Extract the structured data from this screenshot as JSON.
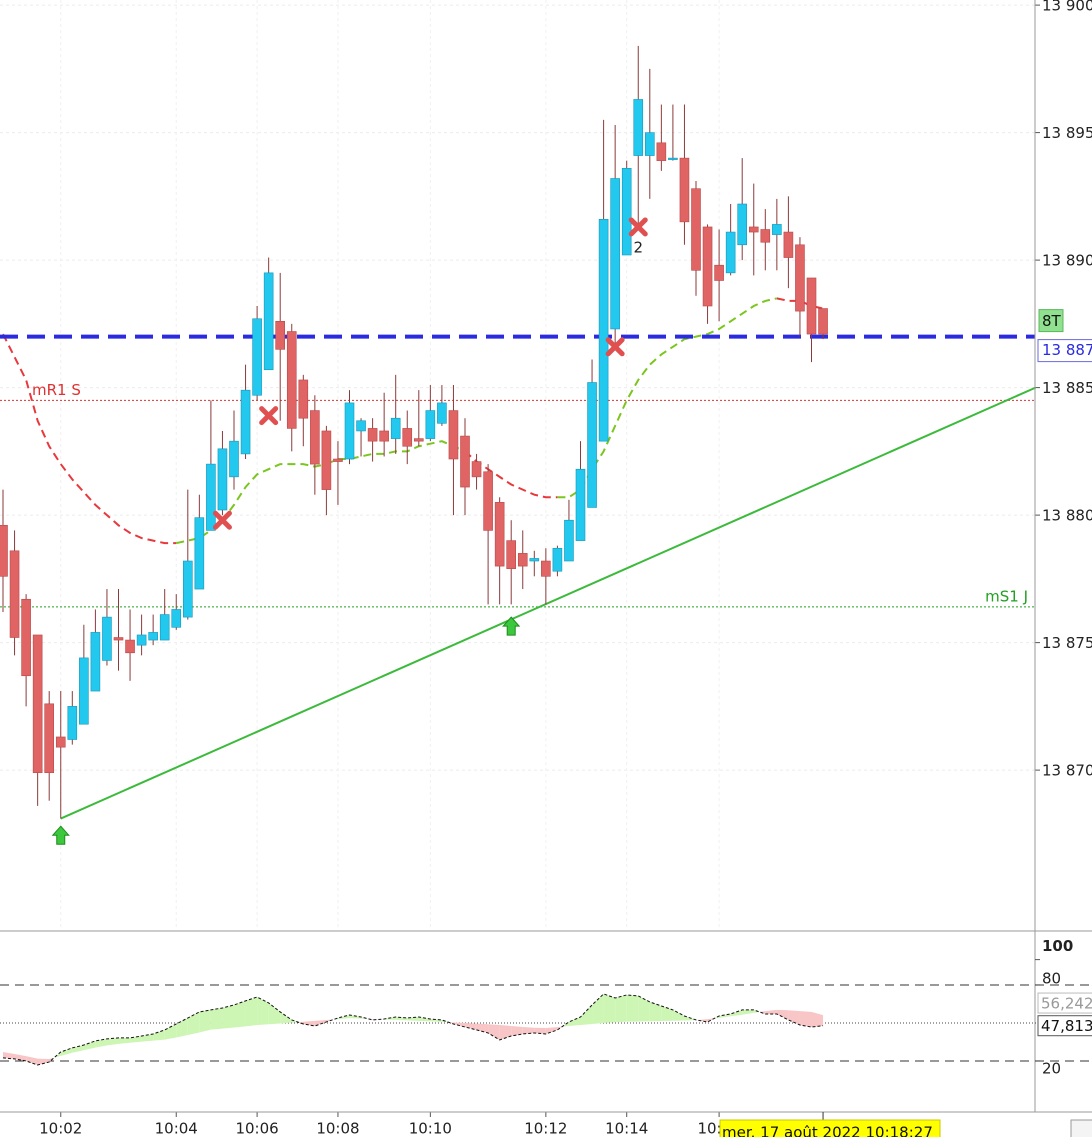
{
  "chart_data": {
    "type": "candlestick",
    "categories": [
      null,
      null,
      null,
      null,
      null,
      "10:02",
      null,
      null,
      null,
      null,
      null,
      null,
      null,
      null,
      null,
      "10:04",
      null,
      null,
      null,
      null,
      null,
      null,
      "10:06",
      null,
      null,
      null,
      null,
      null,
      null,
      "10:08",
      null,
      null,
      null,
      null,
      null,
      null,
      null,
      "10:10",
      null,
      null,
      null,
      null,
      null,
      null,
      null,
      null,
      null,
      "10:12",
      null,
      null,
      null,
      null,
      null,
      null,
      "10:14",
      null,
      null,
      null,
      null,
      null,
      null,
      null,
      "10:16",
      null,
      null,
      null,
      null,
      null,
      null,
      null,
      null,
      null
    ],
    "open": [
      13879.6,
      13878.6,
      13876.7,
      13875.3,
      13872.6,
      13871.3,
      13871.2,
      13871.8,
      13873.1,
      13874.3,
      13875.2,
      13875.1,
      13874.9,
      13875.1,
      13875.1,
      13875.6,
      13876.0,
      13877.1,
      13879.4,
      13880.2,
      13881.5,
      13882.4,
      13884.7,
      13885.7,
      13887.6,
      13887.2,
      13885.3,
      13884.1,
      13883.3,
      13882.2,
      13882.2,
      13883.3,
      13883.4,
      13883.3,
      13883.0,
      13883.4,
      13883.0,
      13883.0,
      13883.6,
      13884.1,
      13883.1,
      13882.1,
      13881.7,
      13880.5,
      13879.0,
      13878.5,
      13878.2,
      13878.2,
      13877.8,
      13878.2,
      13879.0,
      13880.3,
      13882.9,
      13887.3,
      13890.2,
      13894.1,
      13894.1,
      13894.6,
      13894.0,
      13894.0,
      13892.8,
      13891.3,
      13889.8,
      13889.5,
      13890.6,
      13891.3,
      13891.2,
      13891.0,
      13891.1,
      13890.6,
      13889.3,
      13888.1
    ],
    "high": [
      13881.0,
      13879.4,
      13876.9,
      13875.3,
      13873.1,
      13873.1,
      13873.1,
      13875.7,
      13876.3,
      13877.1,
      13877.1,
      13876.3,
      13876.1,
      13876.1,
      13877.1,
      13876.9,
      13881.0,
      13880.8,
      13884.5,
      13883.3,
      13884.1,
      13885.9,
      13888.2,
      13890.1,
      13889.5,
      13887.5,
      13885.5,
      13884.7,
      13883.5,
      13882.9,
      13884.9,
      13883.8,
      13883.8,
      13884.8,
      13885.5,
      13884.1,
      13884.9,
      13885.1,
      13885.1,
      13885.1,
      13883.8,
      13882.4,
      13882.0,
      13880.7,
      13879.8,
      13879.4,
      13878.6,
      13878.7,
      13878.8,
      13880.6,
      13882.9,
      13886.1,
      13895.5,
      13895.3,
      13893.9,
      13898.4,
      13897.5,
      13896.1,
      13896.1,
      13896.1,
      13893.1,
      13891.4,
      13891.2,
      13892.2,
      13894.0,
      13893.0,
      13892.0,
      13892.4,
      13892.5,
      13890.9,
      13889.3,
      13888.1
    ],
    "low": [
      13876.2,
      13874.5,
      13872.5,
      13868.6,
      13868.8,
      13868.1,
      13871.0,
      13871.8,
      13873.1,
      13874.1,
      13873.9,
      13873.5,
      13874.5,
      13874.9,
      13875.1,
      13875.5,
      13875.9,
      13877.1,
      13879.4,
      13880.0,
      13881.0,
      13882.2,
      13884.5,
      13885.7,
      13883.7,
      13882.5,
      13882.7,
      13880.8,
      13880.0,
      13880.4,
      13882.0,
      13882.3,
      13882.1,
      13882.3,
      13882.4,
      13882.0,
      13882.7,
      13882.9,
      13883.5,
      13880.0,
      13880.0,
      13881.0,
      13876.5,
      13876.5,
      13876.5,
      13877.1,
      13877.6,
      13876.5,
      13877.6,
      13878.2,
      13879.0,
      13880.3,
      13882.9,
      13886.7,
      13890.2,
      13891.2,
      13892.4,
      13893.5,
      13893.9,
      13890.6,
      13888.6,
      13887.5,
      13887.6,
      13889.4,
      13890.0,
      13889.4,
      13889.6,
      13889.6,
      13888.9,
      13887.0,
      13886.0,
      13886.9
    ],
    "close": [
      13877.6,
      13875.2,
      13873.7,
      13869.9,
      13869.9,
      13870.9,
      13872.5,
      13874.4,
      13875.4,
      13876.0,
      13875.1,
      13874.6,
      13875.3,
      13875.4,
      13876.1,
      13876.3,
      13878.2,
      13879.9,
      13882.0,
      13882.6,
      13882.9,
      13884.9,
      13887.7,
      13889.5,
      13886.5,
      13883.4,
      13883.8,
      13882.0,
      13881.0,
      13882.1,
      13884.4,
      13883.7,
      13882.9,
      13882.9,
      13883.8,
      13882.7,
      13882.9,
      13884.1,
      13884.4,
      13882.2,
      13881.1,
      13881.5,
      13879.4,
      13878.0,
      13877.9,
      13878.0,
      13878.3,
      13877.6,
      13878.7,
      13879.8,
      13881.8,
      13885.2,
      13891.6,
      13893.2,
      13893.6,
      13896.3,
      13895.0,
      13893.9,
      13894.0,
      13891.5,
      13889.6,
      13888.2,
      13889.2,
      13891.1,
      13892.2,
      13891.1,
      13890.7,
      13891.4,
      13890.1,
      13888.0,
      13887.1,
      13887.1
    ],
    "up_color": "#22c8ee",
    "down_color": "#e06464",
    "ylim": [
      13863.73,
      13900.2
    ],
    "yticks": [
      {
        "value": 13900,
        "label": "13 900"
      },
      {
        "value": 13895,
        "label": "13 895"
      },
      {
        "value": 13890,
        "label": "13 890"
      },
      {
        "value": 13885,
        "label": "13 885"
      },
      {
        "value": 13880,
        "label": "13 880"
      },
      {
        "value": 13875,
        "label": "13 875"
      },
      {
        "value": 13870,
        "label": "13 870"
      }
    ],
    "grid": true,
    "ma_series": [
      {
        "color": "#e8383c",
        "values": [
          13887.1,
          13886.2,
          13885.3,
          13883.7,
          13882.7,
          13882.0,
          13881.4,
          13880.9,
          13880.4,
          13880.0,
          13879.6,
          13879.3,
          13879.1,
          13879.0,
          13878.9,
          13878.9,
          null,
          null,
          null,
          null,
          null,
          null,
          null,
          null,
          null,
          null,
          null,
          null,
          null,
          null,
          null,
          null,
          null,
          null,
          null,
          null,
          null,
          null,
          null,
          null,
          13882.5,
          13882.1,
          13881.8,
          13881.5,
          13881.2,
          13881.0,
          13880.8,
          13880.7,
          13880.7,
          null,
          null,
          null,
          null,
          null,
          null,
          null,
          null,
          null,
          null,
          null,
          null,
          null,
          null,
          null,
          null,
          null,
          null,
          13888.5,
          13888.4,
          13888.4,
          13888.2,
          13888.1
        ]
      },
      {
        "color": "#7ac61e",
        "values": [
          null,
          null,
          null,
          null,
          null,
          null,
          null,
          null,
          null,
          null,
          null,
          null,
          null,
          null,
          null,
          13878.9,
          13879.0,
          13879.1,
          13879.4,
          13879.8,
          13880.4,
          13881.1,
          13881.6,
          13881.8,
          13882.0,
          13882.0,
          13882.0,
          13881.9,
          13882.0,
          13882.2,
          13882.2,
          13882.3,
          13882.4,
          13882.4,
          13882.5,
          13882.5,
          13882.7,
          13882.8,
          13882.9,
          13882.7,
          13882.5,
          null,
          null,
          null,
          null,
          null,
          null,
          null,
          13880.7,
          13880.7,
          13881.0,
          13881.8,
          13882.5,
          13883.5,
          13884.5,
          13885.3,
          13885.9,
          13886.3,
          13886.6,
          13886.9,
          13887.0,
          13887.1,
          13887.3,
          13887.6,
          13887.9,
          13888.2,
          13888.4,
          13888.5,
          null,
          null,
          null,
          null
        ]
      }
    ],
    "levels": [
      {
        "name": "mR1 S",
        "value": 13884.5,
        "color": "#e03030"
      },
      {
        "name": "mS1 J",
        "value": 13876.4,
        "color": "#22a022"
      }
    ],
    "price_line": {
      "value": 13887,
      "label": "13 887",
      "color": "#2a2ae0",
      "tag": "8T"
    },
    "trendline": {
      "x": [
        5,
        89.4
      ],
      "values": [
        13868.1,
        13885.0
      ],
      "color": "#3cba3c"
    },
    "signals": [
      {
        "kind": "buy",
        "index": 5,
        "value": 13867.8
      },
      {
        "kind": "buy",
        "index": 44,
        "value": 13876.0
      },
      {
        "kind": "sell",
        "index": 19,
        "value": 13879.8
      },
      {
        "kind": "sell",
        "index": 23,
        "value": 13883.9
      },
      {
        "kind": "sell",
        "index": 53,
        "value": 13886.6
      },
      {
        "kind": "sell",
        "index": 55,
        "value": 13891.3,
        "label": "2"
      }
    ],
    "cursor_label": "mer. 17 août 2022 10:18:27",
    "cursor_index": 71,
    "oscillator": {
      "ylim": [
        -20.3,
        121.8
      ],
      "yticks": [
        100,
        80,
        20
      ],
      "levels": [
        80,
        20
      ],
      "mid": 50,
      "values": [
        22.4,
        21.6,
        20,
        16.8,
        19.2,
        27.1,
        30.3,
        32.6,
        35.8,
        37.4,
        38.2,
        38.2,
        39.7,
        41.3,
        44.5,
        49.2,
        53.9,
        58.7,
        60.3,
        61.8,
        64.2,
        67.4,
        70.5,
        65.8,
        58.7,
        52.4,
        49.2,
        47.6,
        50.8,
        53.9,
        56.3,
        54.7,
        52.4,
        53.1,
        54.7,
        53.9,
        54.7,
        53.1,
        52.4,
        49.2,
        46.8,
        44.5,
        42.1,
        36.6,
        39.7,
        41.3,
        42.1,
        41.3,
        44.5,
        50.8,
        54.7,
        64.2,
        72.9,
        69.7,
        72.1,
        71.3,
        66.6,
        63.4,
        60.3,
        55.5,
        52.4,
        50.8,
        55.5,
        57.1,
        60.3,
        60.3,
        57.1,
        57.1,
        52.4,
        48.4,
        46.8,
        47.8
      ],
      "signal": [
        27.1,
        25.5,
        23.8,
        21.8,
        21.5,
        24.0,
        26.5,
        28.5,
        30.5,
        32.3,
        33.5,
        34.4,
        35.3,
        36.0,
        36.8,
        38.5,
        40.5,
        42.5,
        44.7,
        45.5,
        46.4,
        47.3,
        48.4,
        49.0,
        49.6,
        50.3,
        50.9,
        51.6,
        52.3,
        53.0,
        53.8,
        53.5,
        53.0,
        52.7,
        52.4,
        52.0,
        51.6,
        51.2,
        50.8,
        50.4,
        50.0,
        49.5,
        49.0,
        48.4,
        47.6,
        46.8,
        46.2,
        46.0,
        46.7,
        47.6,
        48.4,
        49.2,
        50.0,
        50.6,
        51.0,
        51.1,
        51.3,
        51.5,
        51.7,
        51.9,
        52.2,
        53.0,
        54.0,
        55.3,
        56.5,
        58.0,
        59.3,
        60.3,
        60.0,
        59.3,
        58.7,
        56.2
      ],
      "last": [
        {
          "value": 56.242,
          "label": "56,242"
        },
        {
          "value": 47.813,
          "label": "47,813"
        }
      ],
      "up_fill": "#cdf5b4",
      "down_fill": "#f8c6c6"
    }
  }
}
